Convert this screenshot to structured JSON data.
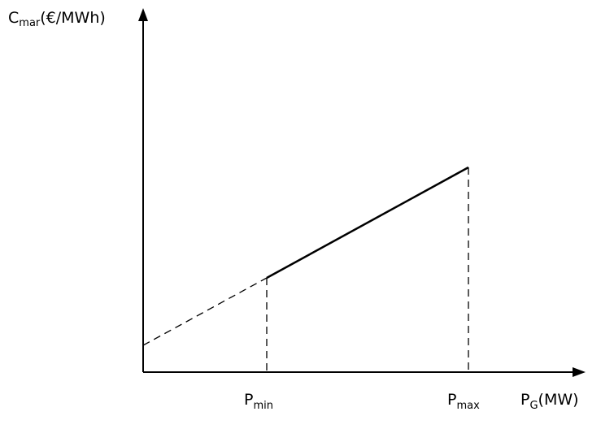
{
  "y_axis_label": {
    "base": "C",
    "sub": "mar",
    "rest": "(€/MWh)"
  },
  "x_axis_label": {
    "base": "P",
    "sub": "G",
    "rest": "(MW)"
  },
  "markers": [
    {
      "base": "P",
      "sub": "min"
    },
    {
      "base": "P",
      "sub": "max"
    }
  ]
}
